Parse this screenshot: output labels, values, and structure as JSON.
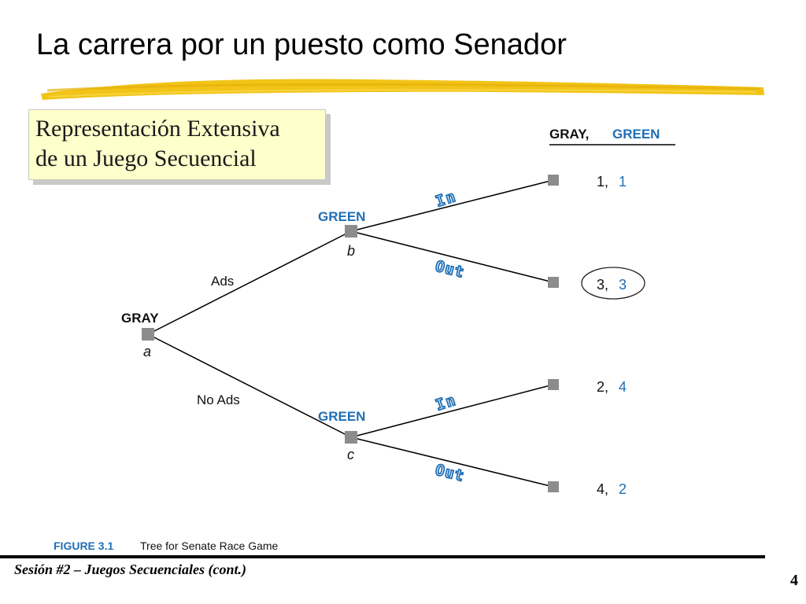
{
  "slide": {
    "title": "La carrera por un puesto como Senador",
    "subtitle_line1": "Representación Extensiva",
    "subtitle_line2": "de un Juego Secuencial"
  },
  "colors": {
    "player1": "#000000",
    "player2": "#1f6fb5",
    "highlight": "#ffffcc",
    "underline": "#f2c418"
  },
  "header": {
    "player1": "GRAY,",
    "player2": "GREEN"
  },
  "nodes": {
    "root": {
      "player": "GRAY",
      "id": "a"
    },
    "upper": {
      "player": "GREEN",
      "id": "b"
    },
    "lower": {
      "player": "GREEN",
      "id": "c"
    }
  },
  "branches": {
    "ads": "Ads",
    "no_ads": "No Ads",
    "in_upper": "In",
    "out_upper": "Out",
    "in_lower": "In",
    "out_lower": "Out"
  },
  "payoffs": [
    {
      "p1": "1,",
      "p2": "1"
    },
    {
      "p1": "3,",
      "p2": "3",
      "circled": true
    },
    {
      "p1": "2,",
      "p2": "4"
    },
    {
      "p1": "4,",
      "p2": "2"
    }
  ],
  "figure": {
    "number": "FIGURE 3.1",
    "caption": "Tree for Senate Race Game"
  },
  "footer": {
    "session": "Sesión #2 – Juegos Secuenciales (cont.)",
    "page": "4"
  }
}
